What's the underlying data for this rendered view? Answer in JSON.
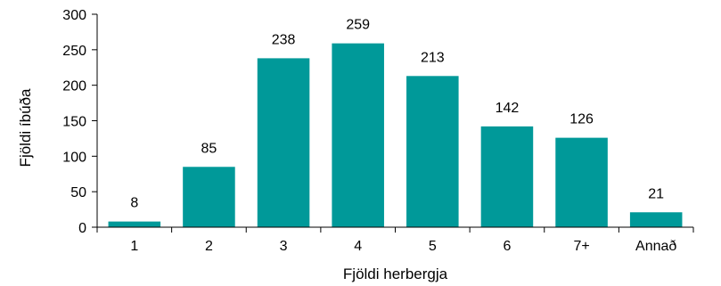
{
  "chart_data": {
    "type": "bar",
    "categories": [
      "1",
      "2",
      "3",
      "4",
      "5",
      "6",
      "7+",
      "Annað"
    ],
    "values": [
      8,
      85,
      238,
      259,
      213,
      142,
      126,
      21
    ],
    "xlabel": "Fjöldi herbergja",
    "ylabel": "Fjöldi íbúða",
    "ylim": [
      0,
      300
    ],
    "yticks": [
      0,
      50,
      100,
      150,
      200,
      250,
      300
    ],
    "bar_color": "#009999",
    "grid": false,
    "legend": "none"
  }
}
